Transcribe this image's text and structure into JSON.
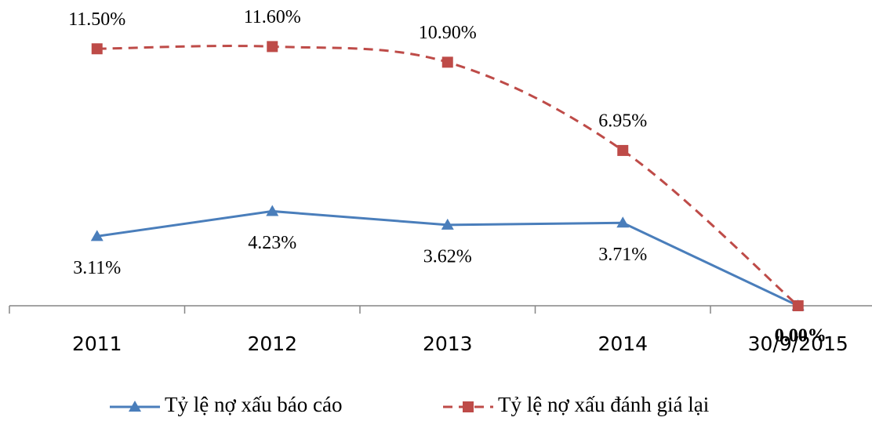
{
  "chart_data": {
    "type": "line",
    "categories": [
      "2011",
      "2012",
      "2013",
      "2014",
      "30/9/2015"
    ],
    "series": [
      {
        "name": "Tỷ lệ nợ xấu báo cáo",
        "color": "#4a7ebb",
        "marker": "triangle",
        "dashed": false,
        "smooth": false,
        "values": [
          3.11,
          4.23,
          3.62,
          3.71,
          0
        ],
        "value_labels": [
          "3.11%",
          "4.23%",
          "3.62%",
          "3.71%",
          "0.00%"
        ]
      },
      {
        "name": "Tỷ lệ nợ xấu đánh giá lại",
        "color": "#be4b48",
        "marker": "square",
        "dashed": true,
        "smooth": true,
        "values": [
          11.5,
          11.6,
          10.9,
          6.95,
          0
        ],
        "value_labels": [
          "11.50%",
          "11.60%",
          "10.90%",
          "6.95%",
          "0.00%"
        ]
      }
    ],
    "ylim": [
      0,
      12
    ],
    "legend": "bottom"
  }
}
